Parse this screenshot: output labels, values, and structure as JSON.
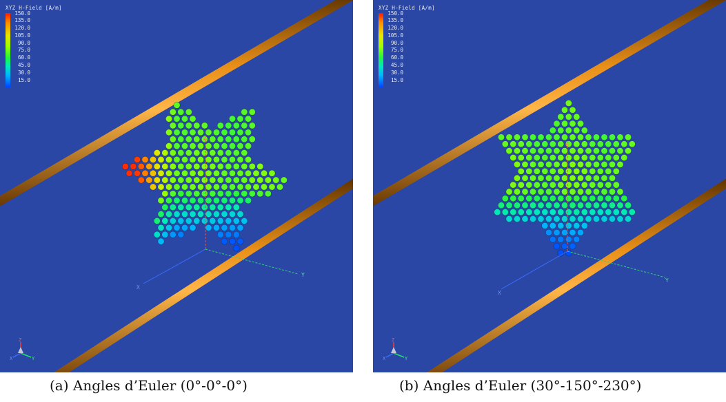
{
  "legend": {
    "title": "XYZ H-Field [A/m]",
    "ticks": [
      "150.0",
      "135.0",
      "120.0",
      "105.0",
      "90.0",
      "75.0",
      "60.0",
      "45.0",
      "30.0",
      "15.0"
    ]
  },
  "axes": {
    "x": "X",
    "y": "Y",
    "z": "Z"
  },
  "colors": {
    "background": "#2a47a5",
    "rod": "#e28a1a",
    "axis_x": "#3a6cff",
    "axis_y": "#2fd27a",
    "axis_z": "#ff4a2a"
  },
  "panels": [
    {
      "id": "a",
      "caption": "(a) Angles d’Euler (0°-0°-0°)"
    },
    {
      "id": "b",
      "caption": "(b) Angles d’Euler (30°-150°-230°)"
    }
  ]
}
